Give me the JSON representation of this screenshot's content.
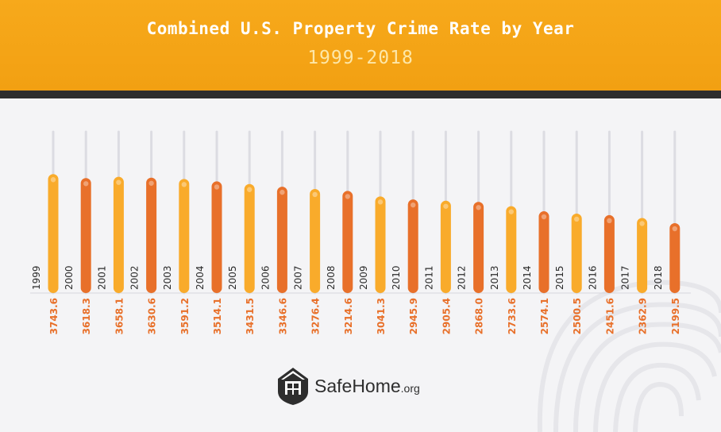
{
  "header": {
    "title": "Combined U.S. Property Crime Rate by Year",
    "subtitle": "1999-2018"
  },
  "colors": {
    "header_bg": "#f6a518",
    "band": "#2d2d2d",
    "bar_light": "#f9ab2b",
    "bar_dark": "#e8702a",
    "value_text": "#e8702a",
    "year_text": "#2b2b2b",
    "track": "#dcdce2"
  },
  "logo": {
    "name": "SafeHome",
    "suffix": ".org",
    "icon": "house-shield-icon"
  },
  "chart_data": {
    "type": "bar",
    "categories": [
      "1999",
      "2000",
      "2001",
      "2002",
      "2003",
      "2004",
      "2005",
      "2006",
      "2007",
      "2008",
      "2009",
      "2010",
      "2011",
      "2012",
      "2013",
      "2014",
      "2015",
      "2016",
      "2017",
      "2018"
    ],
    "values": [
      3743.6,
      3618.3,
      3658.1,
      3630.6,
      3591.2,
      3514.1,
      3431.5,
      3346.6,
      3276.4,
      3214.6,
      3041.3,
      2945.9,
      2905.4,
      2868.0,
      2733.6,
      2574.1,
      2500.5,
      2451.6,
      2362.9,
      2199.5
    ],
    "value_labels": [
      "3743.6",
      "3618.3",
      "3658.1",
      "3630.6",
      "3591.2",
      "3514.1",
      "3431.5",
      "3346.6",
      "3276.4",
      "3214.6",
      "3041.3",
      "2945.9",
      "2905.4",
      "2868.0",
      "2733.6",
      "2574.1",
      "2500.5",
      "2451.6",
      "2362.9",
      "2199.5"
    ],
    "title": "Combined U.S. Property Crime Rate by Year",
    "subtitle": "1999-2018",
    "xlabel": "",
    "ylabel": "",
    "ylim": [
      0,
      4250
    ],
    "grid": false,
    "legend": "none"
  }
}
